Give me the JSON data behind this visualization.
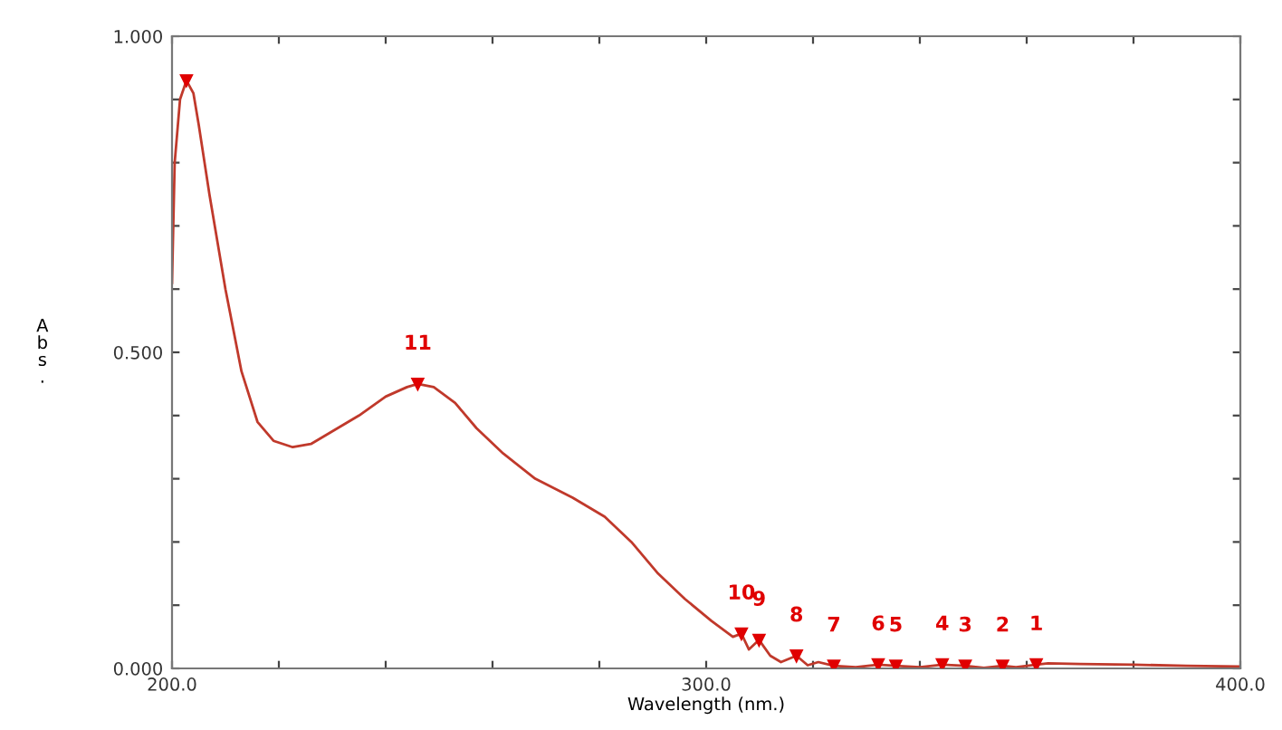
{
  "chart_data": {
    "type": "line",
    "xlabel": "Wavelength (nm.)",
    "ylabel": "A\nb\ns\n.",
    "xlim": [
      200,
      400
    ],
    "ylim": [
      0,
      1
    ],
    "xticks": [
      {
        "value": 200,
        "label": "200.0"
      },
      {
        "value": 220,
        "label": null
      },
      {
        "value": 240,
        "label": null
      },
      {
        "value": 260,
        "label": null
      },
      {
        "value": 280,
        "label": null
      },
      {
        "value": 300,
        "label": "300.0"
      },
      {
        "value": 320,
        "label": null
      },
      {
        "value": 340,
        "label": null
      },
      {
        "value": 360,
        "label": null
      },
      {
        "value": 380,
        "label": null
      },
      {
        "value": 400,
        "label": "400.0"
      }
    ],
    "yticks": [
      {
        "value": 0,
        "label": "0.000"
      },
      {
        "value": 0.1,
        "label": null
      },
      {
        "value": 0.2,
        "label": null
      },
      {
        "value": 0.3,
        "label": null
      },
      {
        "value": 0.4,
        "label": null
      },
      {
        "value": 0.5,
        "label": "0.500"
      },
      {
        "value": 0.6,
        "label": null
      },
      {
        "value": 0.7,
        "label": null
      },
      {
        "value": 0.8,
        "label": null
      },
      {
        "value": 0.9,
        "label": null
      },
      {
        "value": 1,
        "label": "1.000"
      }
    ],
    "grid": false,
    "legend": false,
    "series": [
      {
        "color": "#c0392b",
        "marker": "none",
        "line_style": "solid",
        "x": [
          200,
          200.5,
          201.5,
          202.7,
          204,
          205,
          207,
          210,
          213,
          216,
          219,
          222.6,
          226,
          230,
          235,
          240,
          244,
          246,
          249,
          253,
          257,
          262,
          268,
          275,
          281,
          286,
          291,
          296,
          301,
          305,
          306.6,
          308,
          309.9,
          312,
          314,
          316.9,
          319,
          321,
          323.9,
          328,
          332.2,
          335.5,
          340,
          344.2,
          348.5,
          352,
          355.5,
          358,
          361.8,
          364,
          370,
          380,
          390,
          400
        ],
        "values": [
          0.61,
          0.8,
          0.9,
          0.93,
          0.91,
          0.86,
          0.75,
          0.6,
          0.47,
          0.39,
          0.36,
          0.35,
          0.355,
          0.375,
          0.4,
          0.43,
          0.445,
          0.45,
          0.445,
          0.42,
          0.38,
          0.34,
          0.3,
          0.27,
          0.24,
          0.2,
          0.15,
          0.11,
          0.075,
          0.05,
          0.055,
          0.03,
          0.045,
          0.02,
          0.01,
          0.02,
          0.005,
          0.01,
          0.004,
          0.002,
          0.006,
          0.004,
          0.002,
          0.006,
          0.004,
          0.001,
          0.004,
          0.002,
          0.006,
          0.008,
          0.007,
          0.006,
          0.004,
          0.003
        ]
      },
      {
        "type": "scatter",
        "color": "#e00000",
        "marker": "triangle",
        "x": [
          202.7,
          246,
          306.6,
          309.9,
          316.9,
          323.9,
          332.2,
          335.5,
          344.2,
          348.5,
          355.5,
          361.8
        ],
        "values": [
          0.93,
          0.45,
          0.055,
          0.045,
          0.02,
          0.004,
          0.006,
          0.004,
          0.006,
          0.004,
          0.004,
          0.006
        ]
      }
    ],
    "annotations": [
      {
        "text": "11",
        "x": 246,
        "y": 0.45
      },
      {
        "text": "10",
        "x": 306.6,
        "y": 0.055
      },
      {
        "text": "9",
        "x": 309.9,
        "y": 0.045
      },
      {
        "text": "8",
        "x": 316.9,
        "y": 0.02
      },
      {
        "text": "7",
        "x": 323.9,
        "y": 0.004
      },
      {
        "text": "6",
        "x": 332.2,
        "y": 0.006
      },
      {
        "text": "5",
        "x": 335.5,
        "y": 0.004
      },
      {
        "text": "4",
        "x": 344.2,
        "y": 0.006
      },
      {
        "text": "3",
        "x": 348.5,
        "y": 0.004
      },
      {
        "text": "2",
        "x": 355.5,
        "y": 0.004
      },
      {
        "text": "1",
        "x": 361.8,
        "y": 0.006
      }
    ]
  }
}
